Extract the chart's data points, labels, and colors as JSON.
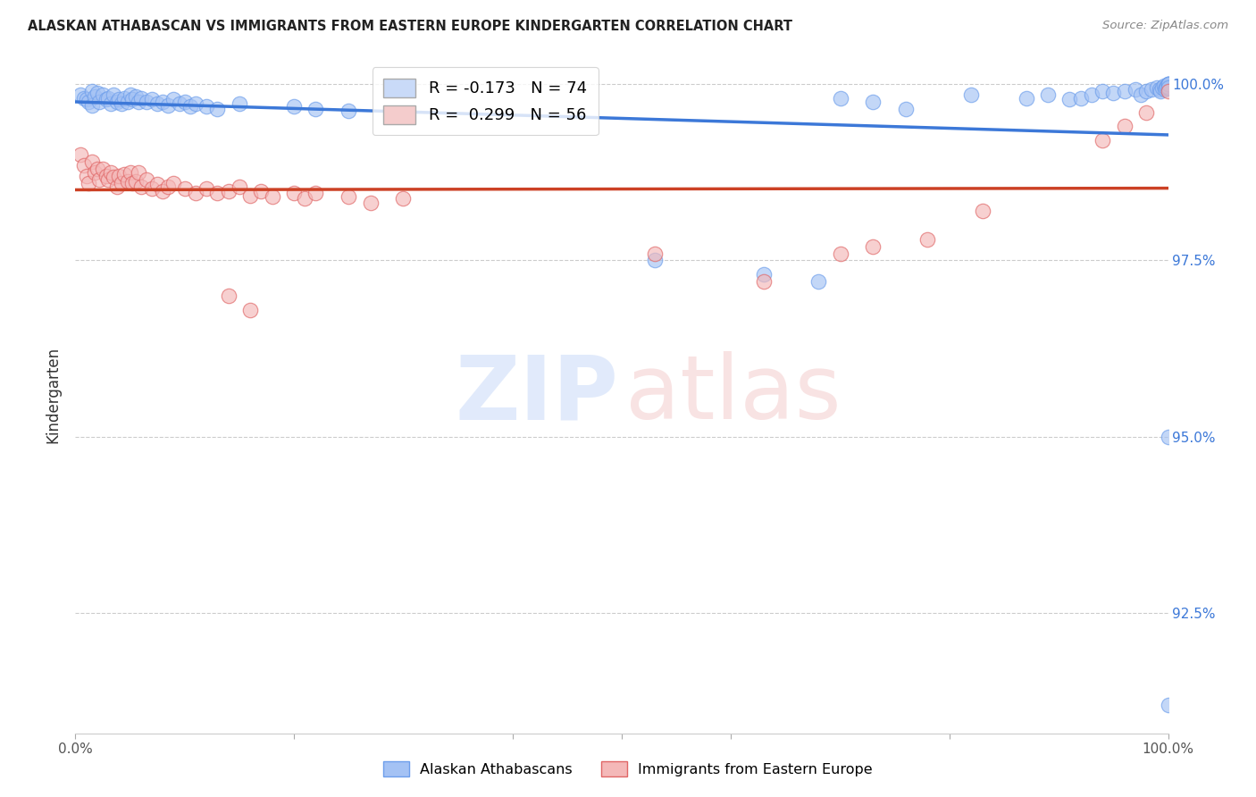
{
  "title": "ALASKAN ATHABASCAN VS IMMIGRANTS FROM EASTERN EUROPE KINDERGARTEN CORRELATION CHART",
  "source_text": "Source: ZipAtlas.com",
  "ylabel": "Kindergarten",
  "ylabel_right_ticks": [
    "100.0%",
    "97.5%",
    "95.0%",
    "92.5%"
  ],
  "ylabel_right_vals": [
    1.0,
    0.975,
    0.95,
    0.925
  ],
  "xlim": [
    0.0,
    1.0
  ],
  "ylim": [
    0.908,
    1.004
  ],
  "legend_blue_label": "Alaskan Athabascans",
  "legend_pink_label": "Immigrants from Eastern Europe",
  "R_blue": -0.173,
  "N_blue": 74,
  "R_pink": 0.299,
  "N_pink": 56,
  "blue_fill_color": "#a4c2f4",
  "pink_fill_color": "#f4b8b8",
  "blue_edge_color": "#6d9eeb",
  "pink_edge_color": "#e06666",
  "blue_line_color": "#3c78d8",
  "pink_line_color": "#cc4125",
  "blue_x": [
    0.005,
    0.008,
    0.01,
    0.012,
    0.015,
    0.015,
    0.018,
    0.02,
    0.022,
    0.025,
    0.028,
    0.03,
    0.032,
    0.035,
    0.038,
    0.04,
    0.042,
    0.045,
    0.048,
    0.05,
    0.052,
    0.055,
    0.058,
    0.06,
    0.065,
    0.07,
    0.075,
    0.08,
    0.085,
    0.09,
    0.095,
    0.1,
    0.105,
    0.11,
    0.12,
    0.13,
    0.15,
    0.2,
    0.22,
    0.25,
    0.53,
    0.63,
    0.68,
    0.7,
    0.73,
    0.76,
    0.87,
    0.89,
    0.91,
    0.92,
    0.93,
    0.94,
    0.95,
    0.96,
    0.97,
    0.975,
    0.98,
    0.985,
    0.99,
    0.992,
    0.993,
    0.995,
    0.996,
    0.997,
    0.998,
    0.999,
    1.0,
    1.0,
    1.0,
    1.0,
    1.0,
    1.0,
    1.0,
    0.82
  ],
  "blue_y": [
    0.9985,
    0.998,
    0.9978,
    0.9975,
    0.999,
    0.997,
    0.9982,
    0.9988,
    0.9975,
    0.9985,
    0.9978,
    0.998,
    0.9972,
    0.9985,
    0.9975,
    0.9978,
    0.9972,
    0.998,
    0.9975,
    0.9985,
    0.9978,
    0.9982,
    0.9975,
    0.998,
    0.9975,
    0.9978,
    0.9972,
    0.9975,
    0.997,
    0.9978,
    0.9972,
    0.9975,
    0.9968,
    0.9972,
    0.9968,
    0.9965,
    0.9972,
    0.9968,
    0.9965,
    0.9962,
    0.975,
    0.973,
    0.972,
    0.998,
    0.9975,
    0.9965,
    0.998,
    0.9985,
    0.9978,
    0.998,
    0.9985,
    0.999,
    0.9988,
    0.999,
    0.9992,
    0.9985,
    0.999,
    0.9992,
    0.9995,
    0.9992,
    0.999,
    0.9995,
    0.9998,
    0.9992,
    0.9995,
    0.9998,
    1.0,
    1.0,
    1.0,
    1.0,
    0.95,
    0.9995,
    0.912,
    0.9985
  ],
  "pink_x": [
    0.005,
    0.008,
    0.01,
    0.012,
    0.015,
    0.018,
    0.02,
    0.022,
    0.025,
    0.028,
    0.03,
    0.032,
    0.035,
    0.038,
    0.04,
    0.042,
    0.045,
    0.048,
    0.05,
    0.052,
    0.055,
    0.058,
    0.06,
    0.065,
    0.07,
    0.075,
    0.08,
    0.085,
    0.09,
    0.1,
    0.11,
    0.12,
    0.13,
    0.14,
    0.15,
    0.16,
    0.17,
    0.18,
    0.2,
    0.21,
    0.22,
    0.25,
    0.27,
    0.3,
    0.14,
    0.16,
    0.53,
    0.63,
    0.7,
    0.73,
    0.78,
    0.83,
    0.94,
    0.96,
    0.98,
    1.0
  ],
  "pink_y": [
    0.99,
    0.9885,
    0.987,
    0.986,
    0.989,
    0.9875,
    0.988,
    0.9865,
    0.988,
    0.987,
    0.9865,
    0.9875,
    0.9868,
    0.9855,
    0.987,
    0.986,
    0.9872,
    0.9862,
    0.9875,
    0.986,
    0.9862,
    0.9875,
    0.9855,
    0.9865,
    0.9852,
    0.9858,
    0.9848,
    0.9855,
    0.986,
    0.9852,
    0.9845,
    0.9852,
    0.9845,
    0.9848,
    0.9855,
    0.9842,
    0.9848,
    0.984,
    0.9845,
    0.9838,
    0.9845,
    0.984,
    0.9832,
    0.9838,
    0.97,
    0.968,
    0.976,
    0.972,
    0.976,
    0.977,
    0.978,
    0.982,
    0.992,
    0.994,
    0.996,
    0.999
  ]
}
